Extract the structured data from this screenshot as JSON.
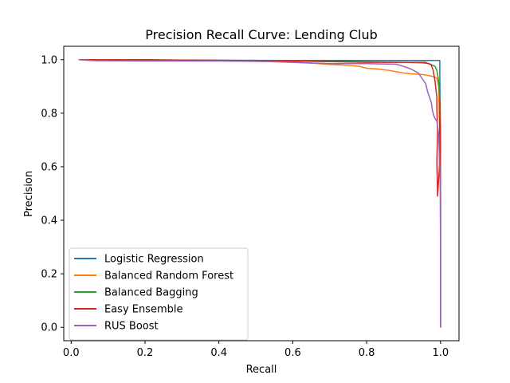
{
  "chart_data": {
    "type": "line",
    "title": "Precision Recall Curve: Lending Club",
    "xlabel": "Recall",
    "ylabel": "Precision",
    "xlim": [
      -0.02,
      1.05
    ],
    "ylim": [
      -0.05,
      1.05
    ],
    "xticks": [
      0.0,
      0.2,
      0.4,
      0.6,
      0.8,
      1.0
    ],
    "xtick_labels": [
      "0.0",
      "0.2",
      "0.4",
      "0.6",
      "0.8",
      "1.0"
    ],
    "yticks": [
      0.0,
      0.2,
      0.4,
      0.6,
      0.8,
      1.0
    ],
    "ytick_labels": [
      "0.0",
      "0.2",
      "0.4",
      "0.6",
      "0.8",
      "1.0"
    ],
    "grid": false,
    "legend_position": "lower-left",
    "series": [
      {
        "name": "Logistic Regression",
        "color": "#1f77b4",
        "points": [
          [
            0.02,
            1.0
          ],
          [
            0.2,
            0.998
          ],
          [
            0.4,
            0.998
          ],
          [
            0.6,
            0.997
          ],
          [
            0.8,
            0.997
          ],
          [
            0.9,
            0.997
          ],
          [
            0.99,
            0.997
          ],
          [
            0.998,
            0.997
          ],
          [
            0.998,
            0.95
          ],
          [
            0.999,
            0.8
          ],
          [
            1.0,
            0.5
          ],
          [
            1.0,
            0.0
          ]
        ]
      },
      {
        "name": "Balanced Random Forest",
        "color": "#ff7f0e",
        "points": [
          [
            0.02,
            1.0
          ],
          [
            0.2,
            0.998
          ],
          [
            0.4,
            0.996
          ],
          [
            0.5,
            0.994
          ],
          [
            0.6,
            0.99
          ],
          [
            0.65,
            0.987
          ],
          [
            0.7,
            0.982
          ],
          [
            0.75,
            0.979
          ],
          [
            0.78,
            0.975
          ],
          [
            0.8,
            0.968
          ],
          [
            0.83,
            0.965
          ],
          [
            0.86,
            0.96
          ],
          [
            0.88,
            0.955
          ],
          [
            0.9,
            0.95
          ],
          [
            0.92,
            0.947
          ],
          [
            0.95,
            0.945
          ],
          [
            0.97,
            0.94
          ],
          [
            0.985,
            0.935
          ],
          [
            0.99,
            0.93
          ],
          [
            0.995,
            0.9
          ],
          [
            0.998,
            0.7
          ],
          [
            1.0,
            0.3
          ],
          [
            1.0,
            0.0
          ]
        ]
      },
      {
        "name": "Balanced Bagging",
        "color": "#2ca02c",
        "points": [
          [
            0.02,
            1.0
          ],
          [
            0.22,
            1.0
          ],
          [
            0.26,
            0.999
          ],
          [
            0.4,
            0.997
          ],
          [
            0.6,
            0.995
          ],
          [
            0.8,
            0.992
          ],
          [
            0.9,
            0.99
          ],
          [
            0.95,
            0.988
          ],
          [
            0.97,
            0.985
          ],
          [
            0.985,
            0.975
          ],
          [
            0.99,
            0.96
          ],
          [
            0.995,
            0.92
          ],
          [
            0.998,
            0.85
          ],
          [
            1.0,
            0.75
          ],
          [
            1.0,
            0.0
          ]
        ]
      },
      {
        "name": "Easy Ensemble",
        "color": "#d62728",
        "points": [
          [
            0.02,
            1.0
          ],
          [
            0.26,
            0.999
          ],
          [
            0.4,
            0.998
          ],
          [
            0.6,
            0.995
          ],
          [
            0.8,
            0.99
          ],
          [
            0.9,
            0.99
          ],
          [
            0.96,
            0.99
          ],
          [
            0.975,
            0.98
          ],
          [
            0.98,
            0.96
          ],
          [
            0.985,
            0.92
          ],
          [
            0.99,
            0.86
          ],
          [
            0.99,
            0.82
          ],
          [
            0.992,
            0.73
          ],
          [
            0.99,
            0.62
          ],
          [
            0.992,
            0.49
          ],
          [
            0.997,
            0.6
          ],
          [
            0.998,
            0.85
          ],
          [
            1.0,
            0.5
          ],
          [
            1.0,
            0.0
          ]
        ]
      },
      {
        "name": "RUS Boost",
        "color": "#9467bd",
        "points": [
          [
            0.02,
            1.0
          ],
          [
            0.05,
            0.997
          ],
          [
            0.07,
            0.996
          ],
          [
            0.2,
            0.995
          ],
          [
            0.4,
            0.995
          ],
          [
            0.55,
            0.993
          ],
          [
            0.6,
            0.99
          ],
          [
            0.7,
            0.985
          ],
          [
            0.8,
            0.985
          ],
          [
            0.88,
            0.983
          ],
          [
            0.9,
            0.975
          ],
          [
            0.92,
            0.965
          ],
          [
            0.94,
            0.95
          ],
          [
            0.95,
            0.93
          ],
          [
            0.96,
            0.91
          ],
          [
            0.965,
            0.88
          ],
          [
            0.97,
            0.86
          ],
          [
            0.975,
            0.84
          ],
          [
            0.978,
            0.81
          ],
          [
            0.982,
            0.79
          ],
          [
            0.985,
            0.78
          ],
          [
            0.99,
            0.77
          ],
          [
            0.995,
            0.72
          ],
          [
            1.0,
            0.5
          ],
          [
            1.0,
            0.0
          ]
        ]
      }
    ]
  }
}
